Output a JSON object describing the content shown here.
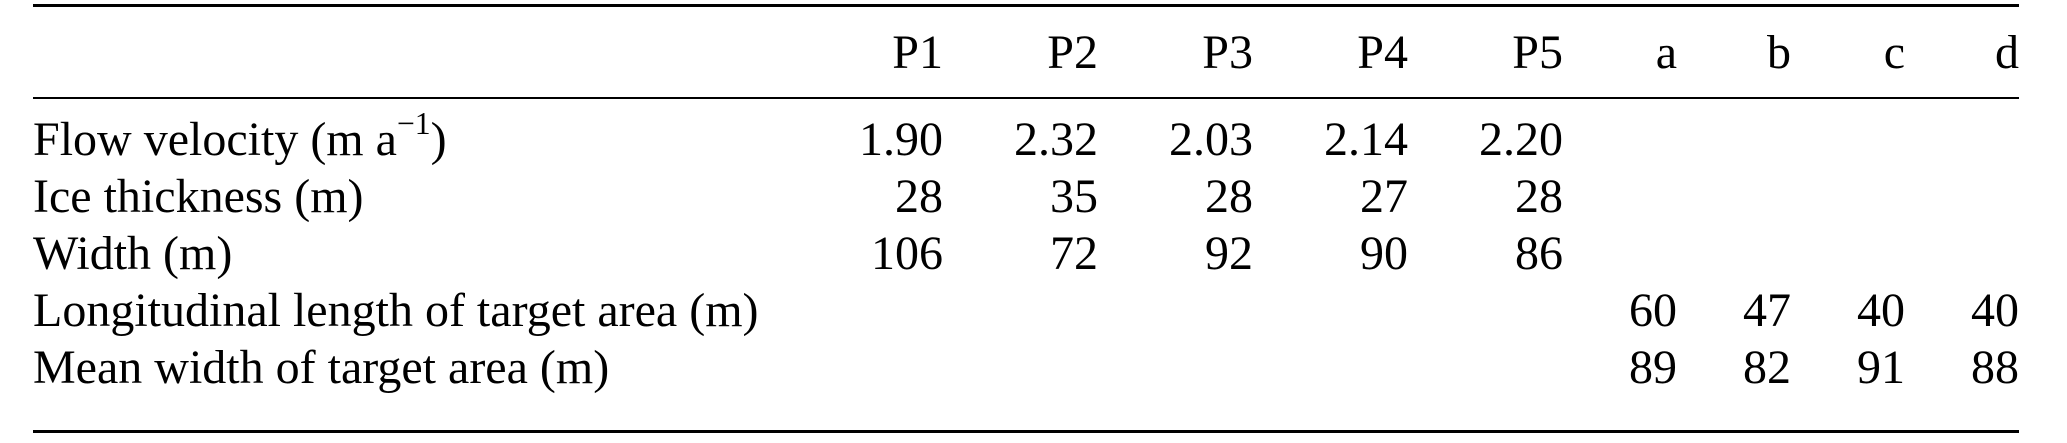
{
  "colors": {
    "background": "#ffffff",
    "text": "#000000",
    "rule": "#000000"
  },
  "table": {
    "columns": [
      "",
      "P1",
      "P2",
      "P3",
      "P4",
      "P5",
      "a",
      "b",
      "c",
      "d"
    ],
    "rows": [
      {
        "label_prefix": "Flow velocity (m a",
        "label_sup": "−1",
        "label_suffix": ")",
        "values": [
          "1.90",
          "2.32",
          "2.03",
          "2.14",
          "2.20",
          "",
          "",
          "",
          ""
        ]
      },
      {
        "label_prefix": "Ice thickness (m)",
        "values": [
          "28",
          "35",
          "28",
          "27",
          "28",
          "",
          "",
          "",
          ""
        ]
      },
      {
        "label_prefix": "Width (m)",
        "values": [
          "106",
          "72",
          "92",
          "90",
          "86",
          "",
          "",
          "",
          ""
        ]
      },
      {
        "label_prefix": "Longitudinal length of target area (m)",
        "values": [
          "",
          "",
          "",
          "",
          "",
          "60",
          "47",
          "40",
          "40"
        ]
      },
      {
        "label_prefix": "Mean width of target area (m)",
        "values": [
          "",
          "",
          "",
          "",
          "",
          "89",
          "82",
          "91",
          "88"
        ]
      }
    ]
  }
}
